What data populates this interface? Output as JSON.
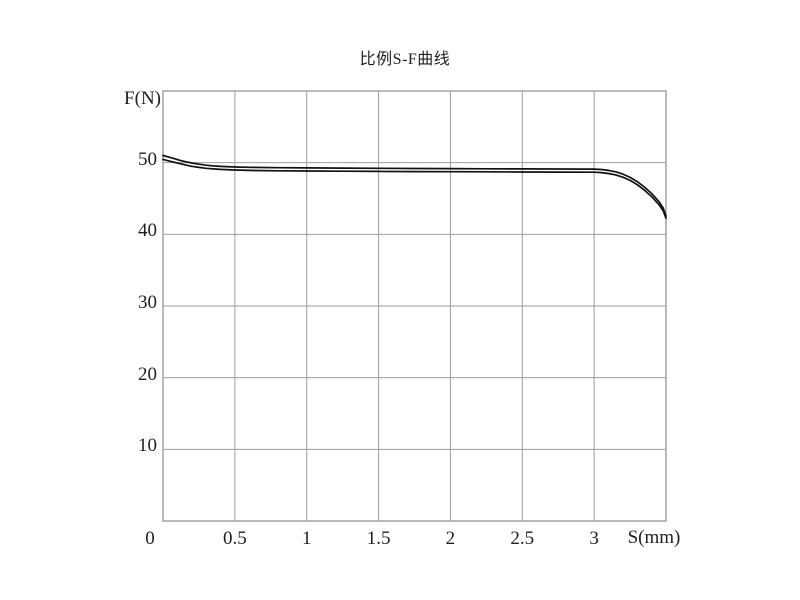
{
  "chart_data": {
    "type": "line",
    "title": "比例S-F曲线",
    "xlabel": "S(mm)",
    "ylabel": "F(N)",
    "xlim": [
      0,
      3.5
    ],
    "ylim": [
      0,
      60
    ],
    "grid": true,
    "legend": "none",
    "colors": {
      "curve": "#111111",
      "grid": "#9e9e9e",
      "frame": "#a8a8a8",
      "text": "#1f1f1f",
      "background": "#ffffff"
    },
    "x_ticks": [
      {
        "v": 0,
        "label": "0"
      },
      {
        "v": 0.5,
        "label": "0.5"
      },
      {
        "v": 1,
        "label": "1"
      },
      {
        "v": 1.5,
        "label": "1.5"
      },
      {
        "v": 2,
        "label": "2"
      },
      {
        "v": 2.5,
        "label": "2.5"
      },
      {
        "v": 3,
        "label": "3"
      }
    ],
    "y_ticks": [
      {
        "v": 10,
        "label": "10"
      },
      {
        "v": 20,
        "label": "20"
      },
      {
        "v": 30,
        "label": "30"
      },
      {
        "v": 40,
        "label": "40"
      },
      {
        "v": 50,
        "label": "50"
      }
    ],
    "series": [
      {
        "name": "upper-curve",
        "points": [
          [
            0,
            51.0
          ],
          [
            0.04,
            50.78
          ],
          [
            0.08,
            50.55
          ],
          [
            0.12,
            50.32
          ],
          [
            0.16,
            50.12
          ],
          [
            0.2,
            49.95
          ],
          [
            0.25,
            49.78
          ],
          [
            0.3,
            49.65
          ],
          [
            0.35,
            49.55
          ],
          [
            0.4,
            49.48
          ],
          [
            0.5,
            49.4
          ],
          [
            0.6,
            49.35
          ],
          [
            0.8,
            49.3
          ],
          [
            1,
            49.27
          ],
          [
            1.25,
            49.24
          ],
          [
            1.5,
            49.21
          ],
          [
            1.75,
            49.19
          ],
          [
            2,
            49.17
          ],
          [
            2.25,
            49.15
          ],
          [
            2.5,
            49.13
          ],
          [
            2.75,
            49.12
          ],
          [
            3,
            49.1
          ],
          [
            3.05,
            49.05
          ],
          [
            3.1,
            48.92
          ],
          [
            3.15,
            48.72
          ],
          [
            3.2,
            48.4
          ],
          [
            3.25,
            47.95
          ],
          [
            3.3,
            47.35
          ],
          [
            3.35,
            46.6
          ],
          [
            3.4,
            45.7
          ],
          [
            3.45,
            44.6
          ],
          [
            3.48,
            43.7
          ],
          [
            3.5,
            42.55
          ]
        ]
      },
      {
        "name": "lower-curve",
        "points": [
          [
            0,
            50.45
          ],
          [
            0.04,
            50.25
          ],
          [
            0.08,
            50.05
          ],
          [
            0.12,
            49.85
          ],
          [
            0.16,
            49.66
          ],
          [
            0.2,
            49.5
          ],
          [
            0.25,
            49.34
          ],
          [
            0.3,
            49.22
          ],
          [
            0.35,
            49.13
          ],
          [
            0.4,
            49.06
          ],
          [
            0.5,
            48.97
          ],
          [
            0.6,
            48.92
          ],
          [
            0.8,
            48.87
          ],
          [
            1,
            48.84
          ],
          [
            1.25,
            48.81
          ],
          [
            1.5,
            48.78
          ],
          [
            1.75,
            48.76
          ],
          [
            2,
            48.74
          ],
          [
            2.25,
            48.72
          ],
          [
            2.5,
            48.7
          ],
          [
            2.75,
            48.69
          ],
          [
            3,
            48.67
          ],
          [
            3.05,
            48.62
          ],
          [
            3.1,
            48.49
          ],
          [
            3.15,
            48.29
          ],
          [
            3.2,
            47.97
          ],
          [
            3.25,
            47.52
          ],
          [
            3.3,
            46.92
          ],
          [
            3.35,
            46.17
          ],
          [
            3.4,
            45.27
          ],
          [
            3.45,
            44.17
          ],
          [
            3.48,
            43.3
          ],
          [
            3.5,
            42.25
          ]
        ]
      }
    ]
  }
}
